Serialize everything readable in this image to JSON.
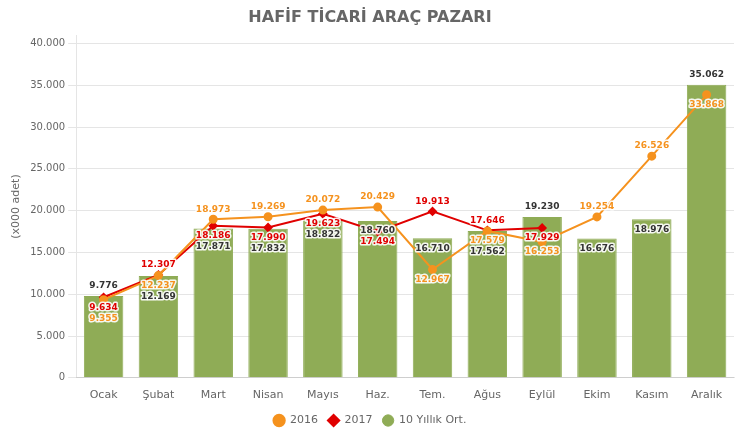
{
  "chart_data": {
    "type": "bar",
    "title": "HAFİF TİCARİ ARAÇ PAZARI",
    "ylabel": "(x000 adet)",
    "categories": [
      "Ocak",
      "Şubat",
      "Mart",
      "Nisan",
      "Mayıs",
      "Haz.",
      "Tem.",
      "Ağus",
      "Eylül",
      "Ekim",
      "Kasım",
      "Aralık"
    ],
    "series": [
      {
        "name": "10 Yıllık Ort.",
        "type": "bar",
        "color": "#8fac56",
        "values": [
          9776,
          12169,
          17871,
          17832,
          18822,
          18760,
          16710,
          17562,
          19230,
          16676,
          18976,
          35062
        ],
        "value_labels": [
          "9.776",
          "12.169",
          "17.871",
          "17.832",
          "18.822",
          "18.760",
          "16.710",
          "17.562",
          "19.230",
          "16.676",
          "18.976",
          "35.062"
        ]
      },
      {
        "name": "2016",
        "type": "line",
        "color": "#f5921e",
        "marker": "circle",
        "values": [
          9355,
          12237,
          18973,
          19269,
          20072,
          20429,
          12967,
          17579,
          16253,
          19254,
          26526,
          33868
        ],
        "value_labels": [
          "9.355",
          "12.237",
          "18.973",
          "19.269",
          "20.072",
          "20.429",
          "12.967",
          "17.579",
          "16.253",
          "19.254",
          "26.526",
          "33.868"
        ]
      },
      {
        "name": "2017",
        "type": "line",
        "color": "#e00000",
        "marker": "diamond",
        "values": [
          9634,
          12307,
          18186,
          17990,
          19623,
          17494,
          19913,
          17646,
          17929,
          null,
          null,
          null
        ],
        "value_labels": [
          "9.634",
          "12.307",
          "18.186",
          "17.990",
          "19.623",
          "17.494",
          "19.913",
          "17.646",
          "17.929",
          null,
          null,
          null
        ]
      }
    ],
    "ylim": [
      0,
      41000
    ],
    "yticks": [
      0,
      {
        "value": 5000,
        "label": "5.000"
      },
      {
        "value": 10000,
        "label": "10.000"
      },
      {
        "value": 15000,
        "label": "15.000"
      },
      {
        "value": 20000,
        "label": "20.000"
      },
      {
        "value": 25000,
        "label": "25.000"
      },
      {
        "value": 30000,
        "label": "30.000"
      },
      {
        "value": 35000,
        "label": "35.000"
      },
      {
        "value": 40000,
        "label": "40.000"
      }
    ],
    "grid": true,
    "legend": "bottom",
    "data_labels": true
  }
}
